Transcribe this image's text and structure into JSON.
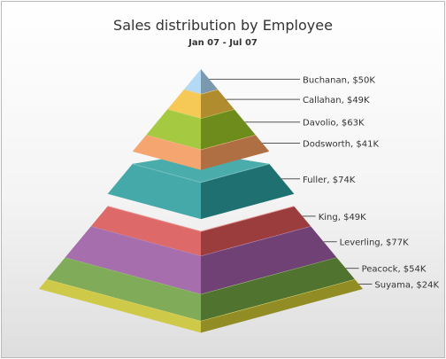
{
  "chart_data": {
    "type": "pyramid",
    "title": "Sales distribution by Employee",
    "subtitle": "Jan 07 - Jul 07",
    "value_prefix": "$",
    "value_suffix": "K",
    "series": [
      {
        "name": "Buchanan",
        "value": 50,
        "color": "#A9D4F2"
      },
      {
        "name": "Callahan",
        "value": 49,
        "color": "#F5C240"
      },
      {
        "name": "Davolio",
        "value": 63,
        "color": "#99C227"
      },
      {
        "name": "Dodsworth",
        "value": 41,
        "color": "#F49A5D"
      },
      {
        "name": "Fuller",
        "value": 74,
        "color": "#2A9D9C"
      },
      {
        "name": "King",
        "value": 49,
        "color": "#D95555"
      },
      {
        "name": "Leverling",
        "value": 77,
        "color": "#9A5AA1"
      },
      {
        "name": "Peacock",
        "value": 54,
        "color": "#6FA041"
      },
      {
        "name": "Suyama",
        "value": 24,
        "color": "#C9C230"
      }
    ],
    "slicing": {
      "sliced_out": [
        "Fuller"
      ]
    }
  }
}
